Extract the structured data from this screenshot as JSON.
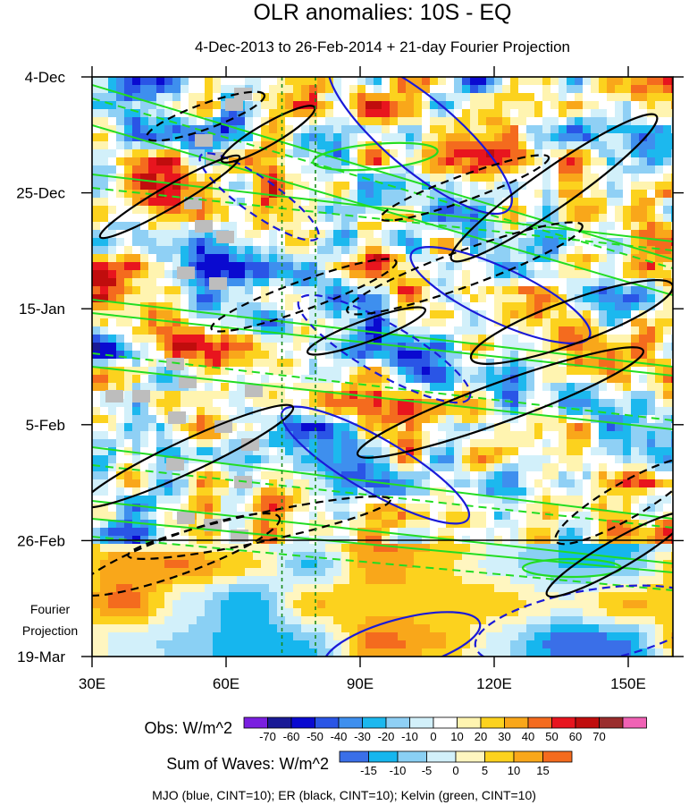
{
  "chart_data": {
    "type": "heatmap",
    "title": "OLR anomalies: 10S - EQ",
    "subtitle": "4-Dec-2013 to 26-Feb-2014 + 21-day Fourier Projection",
    "x_axis": {
      "range": [
        30,
        160
      ],
      "ticks": [
        30,
        60,
        90,
        120,
        150
      ],
      "tick_labels": [
        "30E",
        "60E",
        "90E",
        "120E",
        "150E"
      ]
    },
    "y_axis": {
      "ticks": [
        "4-Dec",
        "25-Dec",
        "15-Jan",
        "5-Feb",
        "26-Feb",
        "19-Mar"
      ],
      "reversed": true
    },
    "boundary_date": "26-Feb",
    "reference_lines_lon": [
      72.5,
      80
    ],
    "forecast_label": "Fourier\nProjection",
    "colorbars": [
      {
        "label": "Obs: W/m^2",
        "ticks": [
          "-70",
          "-60",
          "-50",
          "-40",
          "-30",
          "-20",
          "-10",
          "0",
          "10",
          "20",
          "30",
          "40",
          "50",
          "60",
          "70"
        ],
        "colors": [
          "#7a1fe0",
          "#1a1a96",
          "#0a0ad0",
          "#2a55e6",
          "#3e8fee",
          "#1cb8ee",
          "#8fd0f5",
          "#d2f0fa",
          "#ffffff",
          "#fff4b0",
          "#fcd21e",
          "#f9a71a",
          "#f46b1e",
          "#e8151e",
          "#c00d0d",
          "#9a2d2d",
          "#f062b5"
        ]
      },
      {
        "label": "Sum of Waves: W/m^2",
        "ticks": [
          "-15",
          "-10",
          "-5",
          "0",
          "5",
          "10",
          "15"
        ],
        "colors": [
          "#3a6fe8",
          "#16b6ee",
          "#8ad0f4",
          "#d2f0fa",
          "#fff6c0",
          "#fcd21e",
          "#f9a71a",
          "#f46b1e"
        ]
      }
    ],
    "contour_legend": "MJO (blue, CINT=10); ER (black, CINT=10); Kelvin (green, CINT=10)",
    "contour_colors": {
      "MJO": "#1a1ad8",
      "ER": "#000000",
      "Kelvin": "#22dd22"
    },
    "missing_color": "#bdbdbd"
  }
}
